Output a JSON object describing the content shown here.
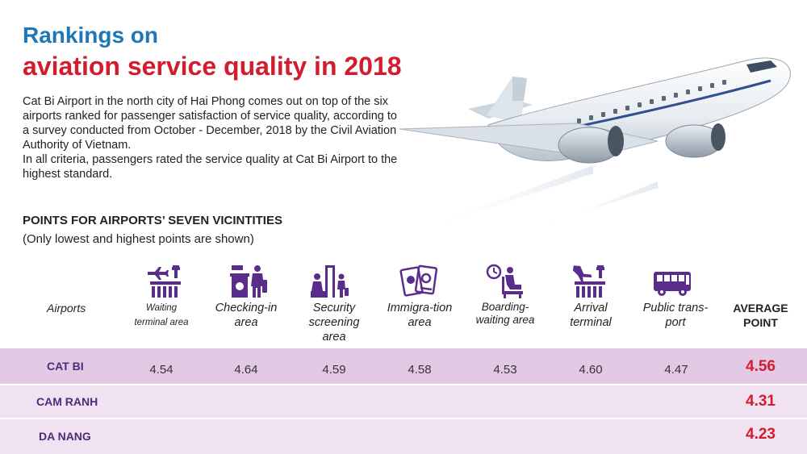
{
  "title_line1": "Rankings on",
  "title_line2": "aviation service quality in 2018",
  "intro_1": "Cat Bi Airport in the north city of Hai Phong comes out on top of the six airports ranked for passenger satisfaction of service quality, according to a survey conducted from October - December, 2018 by the Civil Aviation Authority of Vietnam.",
  "intro_2": "In all criteria, passengers rated the service quality at Cat Bi Airport to the highest standard.",
  "section_title": "POINTS FOR AIRPORTS’ SEVEN VICINTITIES",
  "section_subtitle": "(Only lowest and highest points are shown)",
  "colors": {
    "title_blue": "#1d77b8",
    "title_red": "#d21d2f",
    "icon_purple": "#5a2d8c",
    "row_dark": "#e4c9e4",
    "row_light": "#f1e2f1"
  },
  "chart_data": {
    "type": "table",
    "row_header": "Airports",
    "columns": [
      {
        "label": "Waiting terminal area",
        "icon": "airport-terminal-icon"
      },
      {
        "label": "Checking-in area",
        "icon": "check-in-counter-icon"
      },
      {
        "label": "Security screening area",
        "icon": "security-screening-icon"
      },
      {
        "label": "Immigra-tion area",
        "icon": "passport-icon"
      },
      {
        "label": "Boarding-waiting area",
        "icon": "waiting-seat-icon"
      },
      {
        "label": "Arrival terminal",
        "icon": "arrival-terminal-icon"
      },
      {
        "label": "Public trans-port",
        "icon": "bus-icon"
      }
    ],
    "average_header": "AVERAGE POINT",
    "rows": [
      {
        "airport": "CAT BI",
        "values": [
          "4.54",
          "4.64",
          "4.59",
          "4.58",
          "4.53",
          "4.60",
          "4.47"
        ],
        "average": "4.56"
      },
      {
        "airport": "CAM RANH",
        "values": [],
        "average": "4.31"
      },
      {
        "airport": "DA NANG",
        "values": [],
        "average": "4.23"
      }
    ]
  }
}
